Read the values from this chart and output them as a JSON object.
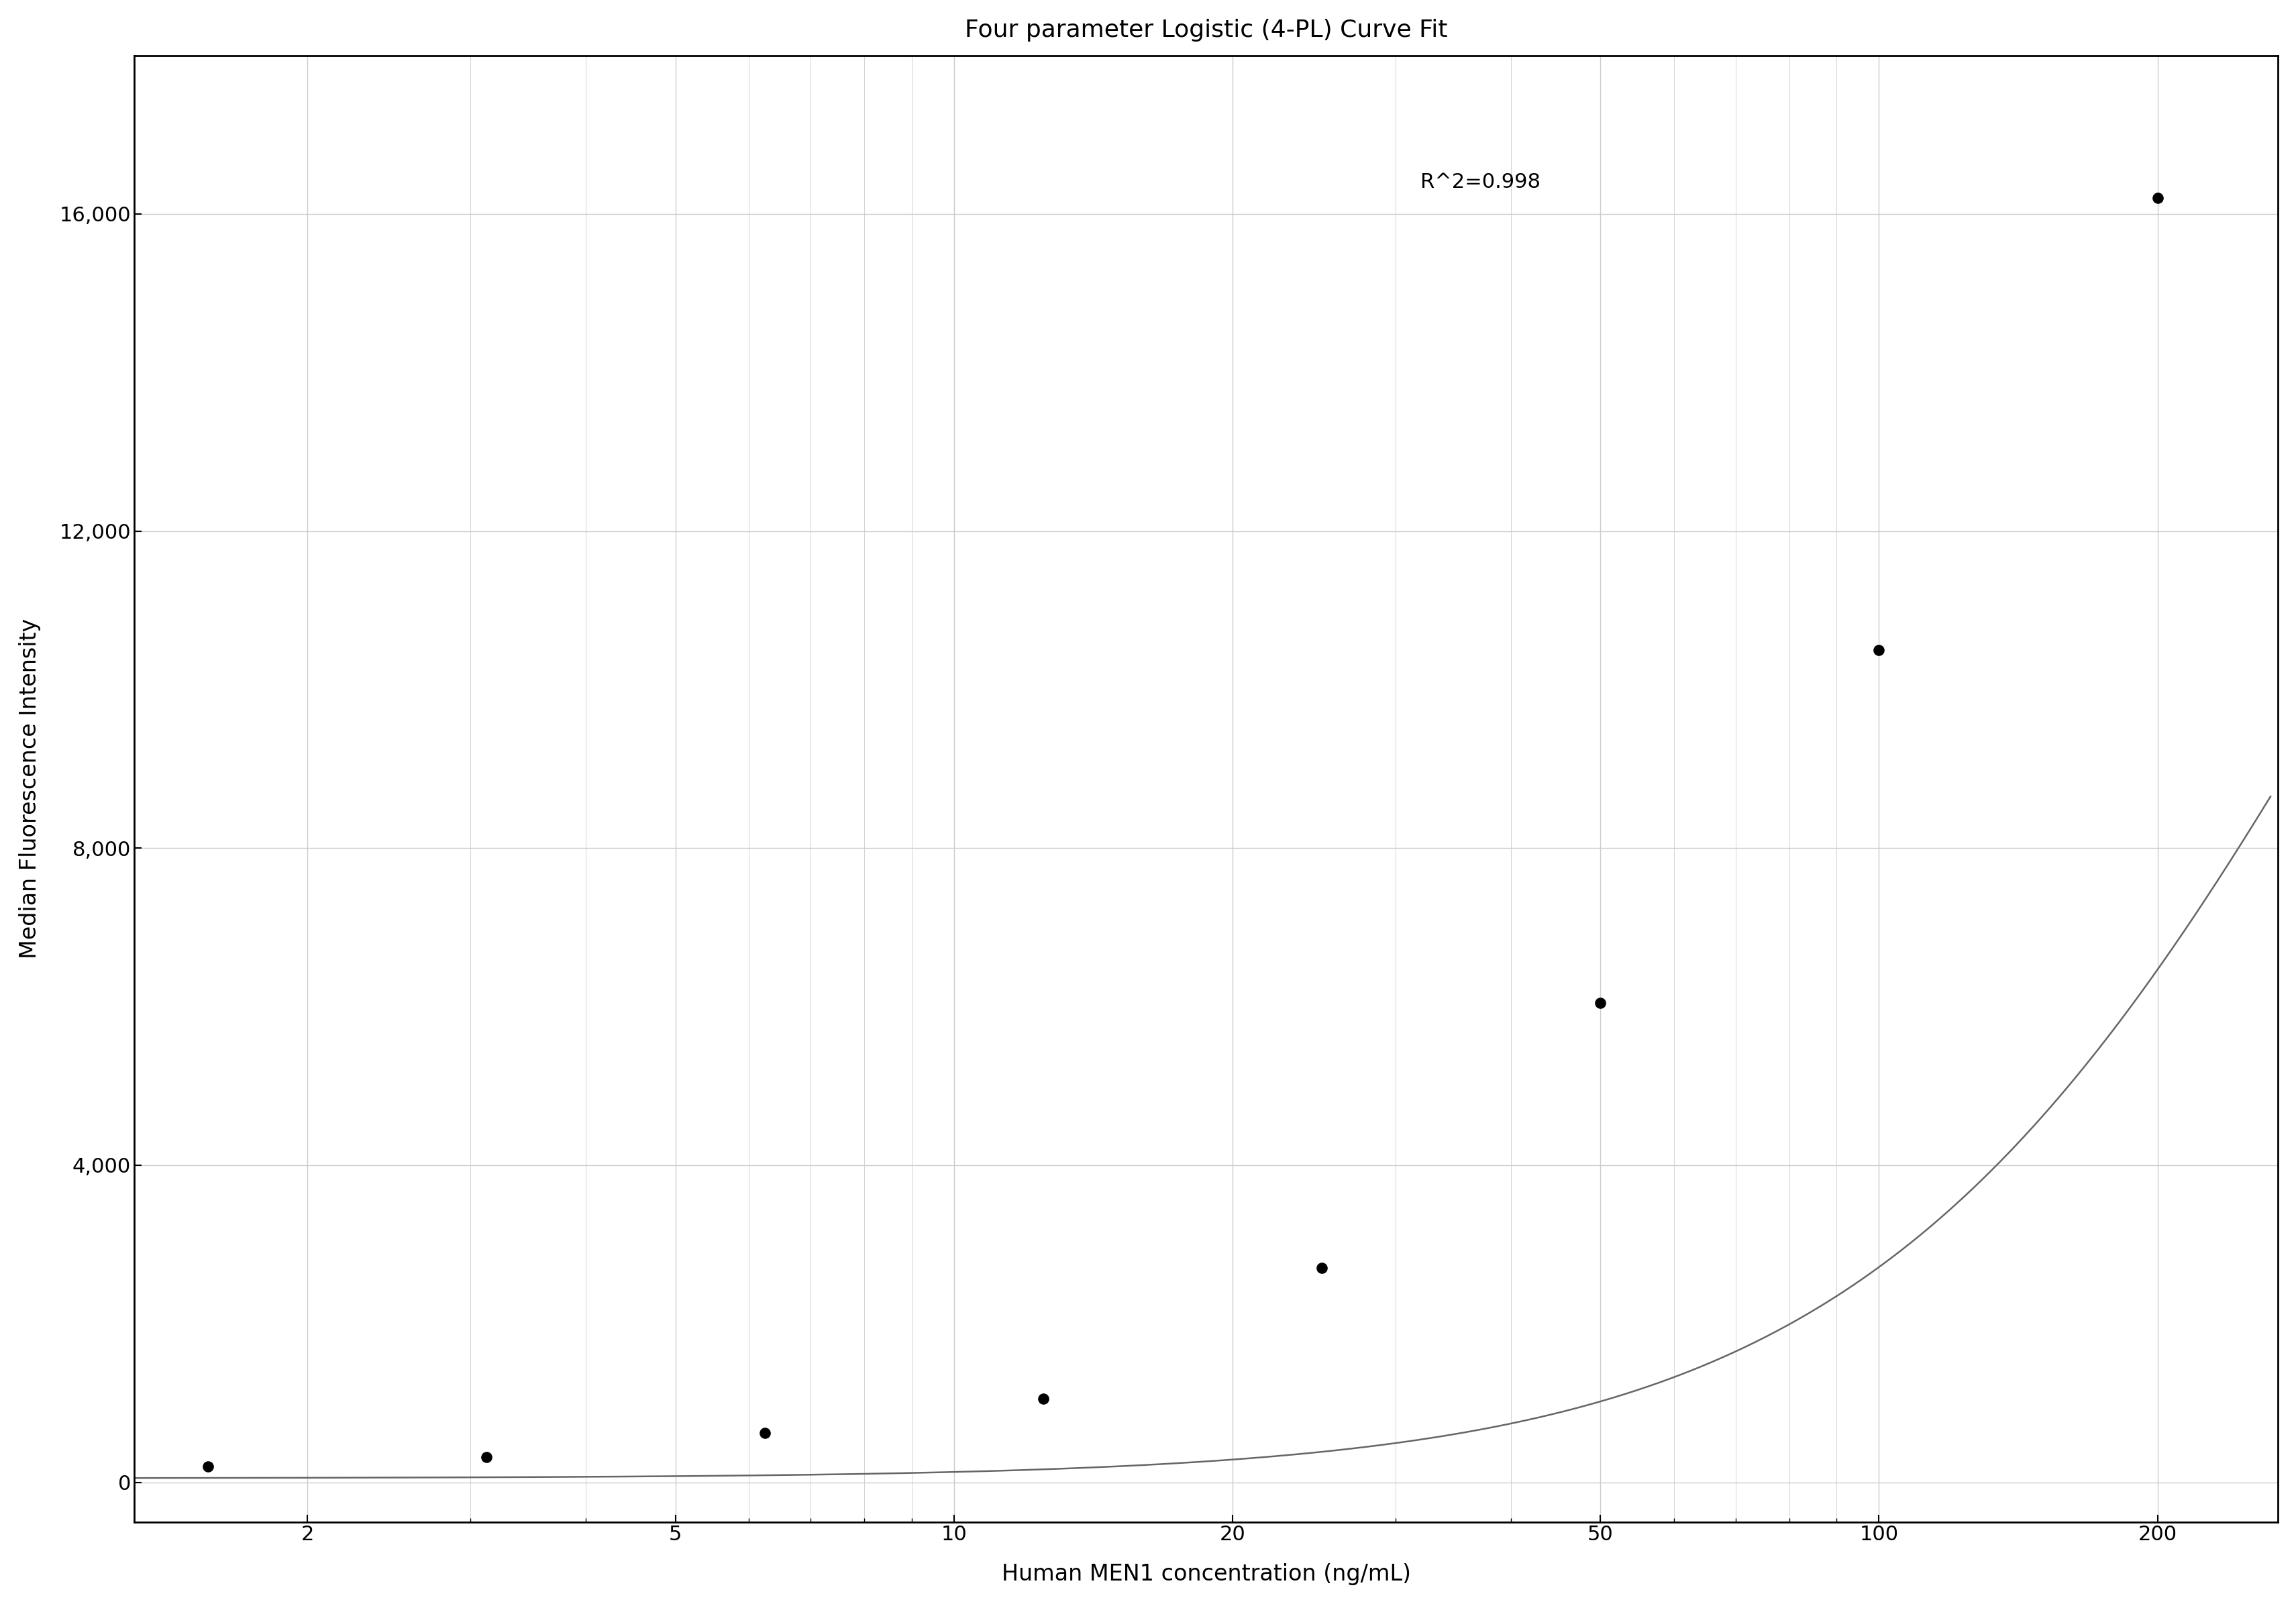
{
  "title": "Four parameter Logistic (4-PL) Curve Fit",
  "xlabel": "Human MEN1 concentration (ng/mL)",
  "ylabel": "Median Fluorescence Intensity",
  "r_squared": "R^2=0.998",
  "scatter_x": [
    1.5625,
    3.125,
    6.25,
    12.5,
    25,
    50,
    100,
    200
  ],
  "scatter_y": [
    200,
    320,
    620,
    1050,
    2700,
    6050,
    10500,
    16200
  ],
  "xscale": "log",
  "xlim": [
    1.3,
    270
  ],
  "ylim": [
    -500,
    18000
  ],
  "yticks": [
    0,
    4000,
    8000,
    12000,
    16000
  ],
  "xticks": [
    2,
    5,
    10,
    20,
    50,
    100,
    200
  ],
  "4pl_A": 50.0,
  "4pl_B": 1.58,
  "4pl_C": 350.0,
  "4pl_D": 22000.0,
  "grid_color": "#cccccc",
  "line_color": "#666666",
  "dot_color": "#000000",
  "background_color": "#ffffff",
  "title_fontsize": 26,
  "label_fontsize": 24,
  "tick_fontsize": 22,
  "annotation_fontsize": 22,
  "dot_size": 120,
  "line_width": 1.8,
  "spine_linewidth": 2.0
}
